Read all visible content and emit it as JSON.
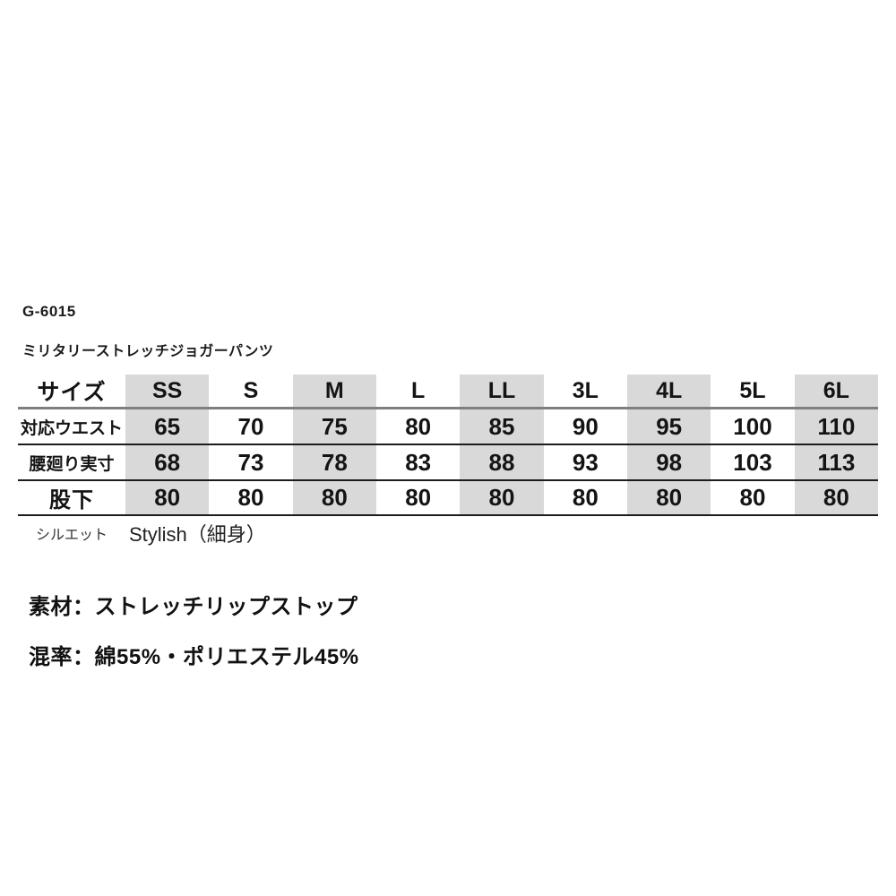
{
  "product": {
    "code": "G-6015",
    "name": "ミリタリーストレッチジョガーパンツ"
  },
  "size_table": {
    "header_label": "サイズ",
    "sizes": [
      "SS",
      "S",
      "M",
      "L",
      "LL",
      "3L",
      "4L",
      "5L",
      "6L"
    ],
    "rows": [
      {
        "label": "対応ウエスト",
        "values": [
          "65",
          "70",
          "75",
          "80",
          "85",
          "90",
          "95",
          "100",
          "110"
        ]
      },
      {
        "label": "腰廻り実寸",
        "values": [
          "68",
          "73",
          "78",
          "83",
          "88",
          "93",
          "98",
          "103",
          "113"
        ]
      },
      {
        "label": "股下",
        "values": [
          "80",
          "80",
          "80",
          "80",
          "80",
          "80",
          "80",
          "80",
          "80"
        ]
      }
    ],
    "shaded_size_columns": [
      0,
      2,
      4,
      6,
      8
    ],
    "shade_color": "#d9d9d9"
  },
  "silhouette": {
    "label": "シルエット",
    "value": "Stylish（細身）"
  },
  "details": {
    "material": "素材：ストレッチリップストップ",
    "blend": "混率：綿55%・ポリエステル45%"
  }
}
